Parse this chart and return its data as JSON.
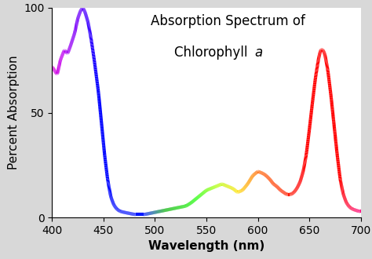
{
  "title_line1": "Absorption Spectrum of",
  "title_line2": "Chlorophyll ",
  "title_italic": "a",
  "xlabel": "Wavelength (nm)",
  "ylabel": "Percent Absorption",
  "xlim": [
    400,
    700
  ],
  "ylim": [
    0,
    100
  ],
  "xticks": [
    400,
    450,
    500,
    550,
    600,
    650,
    700
  ],
  "yticks": [
    0,
    50,
    100
  ],
  "background_color": "#d8d8d8",
  "plot_bg_color": "#ffffff",
  "linewidth": 3.0,
  "title_fontsize": 12,
  "axis_label_fontsize": 11,
  "tick_fontsize": 10
}
